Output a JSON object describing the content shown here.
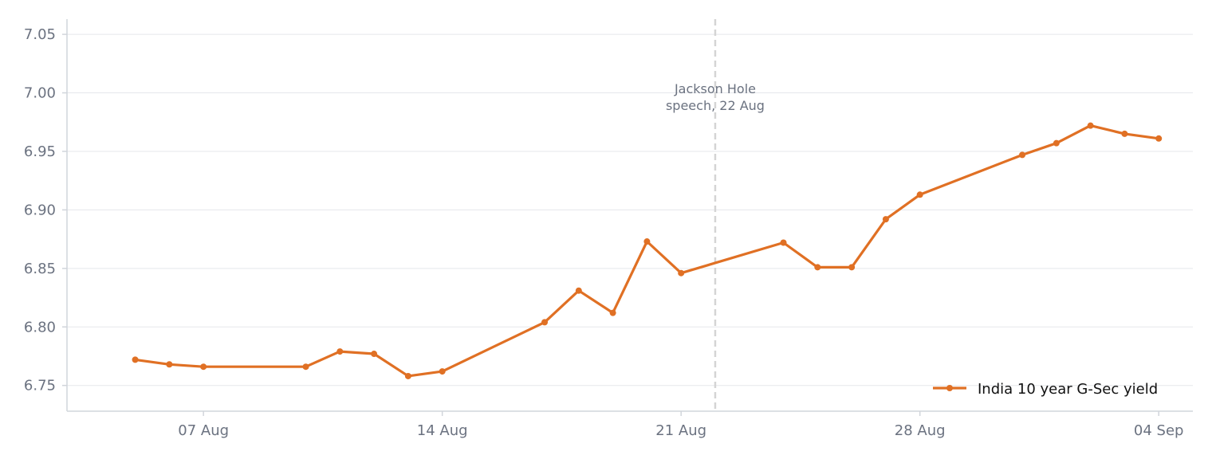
{
  "chart_data": {
    "type": "line",
    "title": "",
    "xlabel": "",
    "ylabel": "",
    "ylim": [
      6.728,
      7.063
    ],
    "xlim": [
      "2025-08-03",
      "2025-09-05"
    ],
    "y_ticks": [
      "6.75",
      "6.80",
      "6.85",
      "6.90",
      "6.95",
      "7.00",
      "7.05"
    ],
    "x_ticks": [
      {
        "date": "2025-08-07",
        "label": "07 Aug"
      },
      {
        "date": "2025-08-14",
        "label": "14 Aug"
      },
      {
        "date": "2025-08-21",
        "label": "21 Aug"
      },
      {
        "date": "2025-08-28",
        "label": "28 Aug"
      },
      {
        "date": "2025-09-04",
        "label": "04 Sep"
      }
    ],
    "grid": "horizontal",
    "legend_position": "bottom-right",
    "colors": {
      "series": "#e07024",
      "event_line": "#d4d4d4"
    },
    "series": [
      {
        "name": "India 10 year G-Sec yield",
        "x": [
          "2025-08-05",
          "2025-08-06",
          "2025-08-07",
          "2025-08-10",
          "2025-08-11",
          "2025-08-12",
          "2025-08-13",
          "2025-08-14",
          "2025-08-17",
          "2025-08-18",
          "2025-08-19",
          "2025-08-20",
          "2025-08-21",
          "2025-08-24",
          "2025-08-25",
          "2025-08-26",
          "2025-08-27",
          "2025-08-28",
          "2025-08-31",
          "2025-09-01",
          "2025-09-02",
          "2025-09-03",
          "2025-09-04"
        ],
        "y": [
          6.772,
          6.768,
          6.766,
          6.766,
          6.779,
          6.777,
          6.758,
          6.762,
          6.804,
          6.831,
          6.812,
          6.873,
          6.846,
          6.872,
          6.851,
          6.851,
          6.892,
          6.913,
          6.947,
          6.957,
          6.972,
          6.965,
          6.961
        ]
      }
    ],
    "annotations": [
      {
        "date": "2025-08-22",
        "lines": [
          "Jackson Hole",
          "speech, 22 Aug"
        ]
      }
    ]
  }
}
